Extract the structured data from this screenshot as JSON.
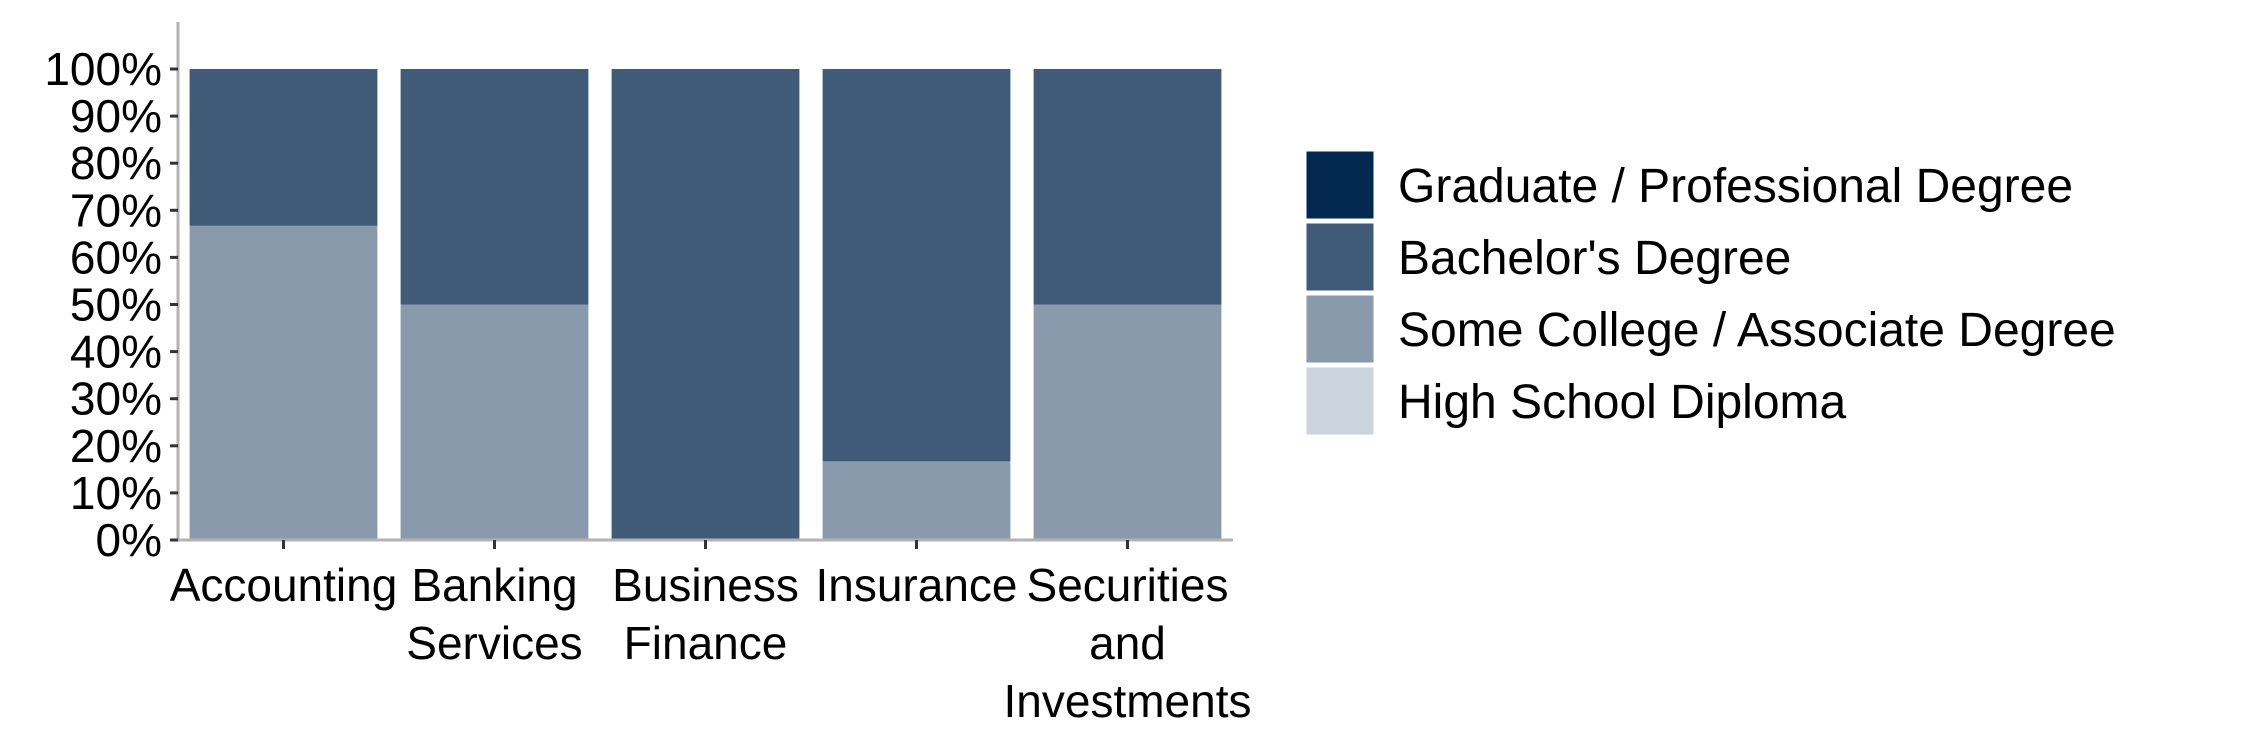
{
  "chart_data": {
    "type": "bar",
    "stacked": true,
    "title": "",
    "xlabel": "",
    "ylabel": "",
    "ylim": [
      0,
      100
    ],
    "yticks": [
      "0%",
      "10%",
      "20%",
      "30%",
      "40%",
      "50%",
      "60%",
      "70%",
      "80%",
      "90%",
      "100%"
    ],
    "categories": [
      [
        "Accounting"
      ],
      [
        "Banking",
        "Services"
      ],
      [
        "Business",
        "Finance"
      ],
      [
        "Insurance"
      ],
      [
        "Securities",
        "and",
        "Investments"
      ]
    ],
    "series": [
      {
        "name": "High School Diploma",
        "color": "#cbd3dc",
        "values": [
          0,
          0,
          0,
          0,
          0
        ]
      },
      {
        "name": "Some College / Associate Degree",
        "color": "#8a9aad",
        "values": [
          66.7,
          50,
          0,
          16.7,
          50
        ]
      },
      {
        "name": "Bachelor's Degree",
        "color": "#405b78",
        "values": [
          33.3,
          50,
          100,
          83.3,
          50
        ]
      },
      {
        "name": "Graduate / Professional Degree",
        "color": "#02284f",
        "values": [
          0,
          0,
          0,
          0,
          0
        ]
      }
    ],
    "legend_order": [
      "Graduate / Professional Degree",
      "Bachelor's Degree",
      "Some College / Associate Degree",
      "High School Diploma"
    ],
    "legend_position": "right",
    "grid": false
  }
}
